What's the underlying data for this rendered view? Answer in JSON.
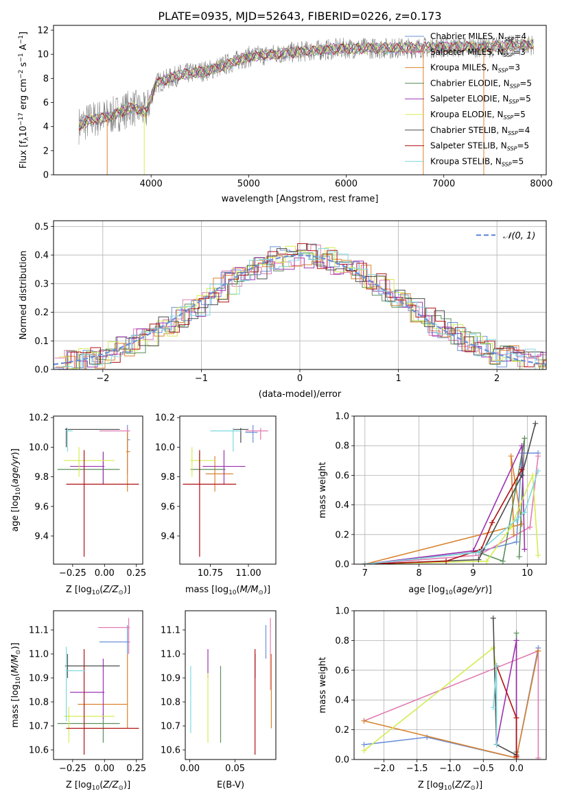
{
  "figure_title": "PLATE=0935, MJD=52643, FIBERID=0226, z=0.173",
  "colors": {
    "chab_miles": "#6a8fd8",
    "salp_miles": "#e27ab0",
    "krou_miles": "#d8822c",
    "chab_elodie": "#5a8e5a",
    "salp_elodie": "#9b30b0",
    "krou_elodie": "#d4ec50",
    "chab_stelib": "#4a4a4a",
    "salp_stelib": "#b01010",
    "krou_stelib": "#7fd8e0",
    "data": "#808080",
    "gauss": "#6a8fd8"
  },
  "chart_data": [
    {
      "id": "spectrum",
      "type": "line",
      "title": "PLATE=0935, MJD=52643, FIBERID=0226, z=0.173",
      "xlabel": "wavelength [Angstrom, rest frame]",
      "ylabel": "Flux [f_λ 10^-17 erg cm^-2 s^-1 A^-1]",
      "xlim": [
        3000,
        8050
      ],
      "ylim": [
        0,
        12.4
      ],
      "xticks": [
        4000,
        5000,
        6000,
        7000,
        8000
      ],
      "yticks": [
        0,
        2,
        4,
        6,
        8,
        10,
        12
      ],
      "grid": false,
      "legend": "upper-right",
      "legend_entries": [
        {
          "label": "Chabrier MILES, N",
          "sub": "SSP",
          "suffix": "=4",
          "color": "#6a8fd8"
        },
        {
          "label": "Salpeter MILES, N",
          "sub": "SSP",
          "suffix": "=3",
          "color": "#e27ab0"
        },
        {
          "label": "Kroupa MILES, N",
          "sub": "SSP",
          "suffix": "=3",
          "color": "#d8822c"
        },
        {
          "label": "Chabrier ELODIE, N",
          "sub": "SSP",
          "suffix": "=5",
          "color": "#5a8e5a"
        },
        {
          "label": "Salpeter ELODIE, N",
          "sub": "SSP",
          "suffix": "=5",
          "color": "#9b30b0"
        },
        {
          "label": "Kroupa ELODIE, N",
          "sub": "SSP",
          "suffix": "=5",
          "color": "#d4ec50"
        },
        {
          "label": "Chabrier STELIB, N",
          "sub": "SSP",
          "suffix": "=4",
          "color": "#4a4a4a"
        },
        {
          "label": "Salpeter STELIB, N",
          "sub": "SSP",
          "suffix": "=5",
          "color": "#b01010"
        },
        {
          "label": "Kroupa STELIB, N",
          "sub": "SSP",
          "suffix": "=5",
          "color": "#7fd8e0"
        }
      ],
      "continuum": [
        [
          3260,
          4.1
        ],
        [
          3400,
          4.6
        ],
        [
          3600,
          4.9
        ],
        [
          3800,
          5.6
        ],
        [
          3950,
          5.2
        ],
        [
          4050,
          7.6
        ],
        [
          4300,
          8.3
        ],
        [
          4600,
          8.7
        ],
        [
          5000,
          9.8
        ],
        [
          5500,
          10.2
        ],
        [
          6000,
          10.5
        ],
        [
          6500,
          10.5
        ],
        [
          7000,
          10.6
        ],
        [
          7500,
          10.6
        ],
        [
          7900,
          10.8
        ]
      ],
      "spike_features": [
        [
          3550,
          0.0
        ],
        [
          3930,
          0.0
        ],
        [
          6790,
          0.0
        ],
        [
          7410,
          0.0
        ]
      ]
    },
    {
      "id": "residuals",
      "type": "histogram",
      "xlabel": "(data-model)/error",
      "ylabel": "Normed distribution",
      "xlim": [
        -2.5,
        2.5
      ],
      "ylim": [
        0,
        0.52
      ],
      "xticks": [
        -2,
        -1,
        0,
        1,
        2
      ],
      "yticks": [
        0.0,
        0.1,
        0.2,
        0.3,
        0.4,
        0.5
      ],
      "grid": true,
      "legend": "upper-right",
      "legend_label": "N(0,1)",
      "bin_width": 0.1,
      "n_series": 9
    },
    {
      "id": "age_vs_Z",
      "type": "errorbar",
      "xlabel": "Z [log10(Z/Z_sun)]",
      "ylabel": "age  [log10(age/yr)]",
      "xlim": [
        -0.4,
        0.3
      ],
      "ylim": [
        9.21,
        10.21
      ],
      "xticks": [
        -0.25,
        0.0,
        0.25
      ],
      "yticks": [
        9.4,
        9.6,
        9.8,
        10.0,
        10.2
      ],
      "points": [
        {
          "s": "chab_miles",
          "x": 0.18,
          "y": 10.05,
          "xe": [
            0.18,
            0.2
          ],
          "ye": [
            9.98,
            10.15
          ]
        },
        {
          "s": "salp_miles",
          "x": 0.18,
          "y": 10.11,
          "xe": [
            -0.04,
            0.2
          ],
          "ye": [
            9.82,
            10.13
          ]
        },
        {
          "s": "krou_miles",
          "x": 0.18,
          "y": 9.97,
          "xe": [
            0.17,
            0.2
          ],
          "ye": [
            9.7,
            10.1
          ]
        },
        {
          "s": "chab_elodie",
          "x": -0.01,
          "y": 9.85,
          "xe": [
            -0.37,
            0.12
          ],
          "ye": [
            9.75,
            9.96
          ]
        },
        {
          "s": "salp_elodie",
          "x": -0.01,
          "y": 9.87,
          "xe": [
            -0.27,
            0.0
          ],
          "ye": [
            9.75,
            9.97
          ]
        },
        {
          "s": "krou_elodie",
          "x": -0.2,
          "y": 9.91,
          "xe": [
            -0.32,
            0.08
          ],
          "ye": [
            9.8,
            10.0
          ]
        },
        {
          "s": "chab_stelib",
          "x": -0.3,
          "y": 10.12,
          "xe": [
            -0.31,
            0.12
          ],
          "ye": [
            10.0,
            10.13
          ]
        },
        {
          "s": "salp_stelib",
          "x": -0.16,
          "y": 9.75,
          "xe": [
            -0.3,
            0.27
          ],
          "ye": [
            9.26,
            9.98
          ]
        },
        {
          "s": "krou_stelib",
          "x": -0.29,
          "y": 10.11,
          "xe": [
            -0.3,
            -0.25
          ],
          "ye": [
            9.97,
            10.13
          ]
        }
      ]
    },
    {
      "id": "age_vs_mass",
      "type": "errorbar",
      "xlabel": "mass [log10(M/M_sun)]",
      "xlim": [
        10.55,
        11.18
      ],
      "ylim": [
        9.21,
        10.21
      ],
      "xticks": [
        10.75,
        11.0
      ],
      "yticks": [
        9.4,
        9.6,
        9.8,
        10.0,
        10.2
      ],
      "points": [
        {
          "s": "chab_miles",
          "x": 11.03,
          "y": 10.1,
          "xe": [
            10.98,
            11.06
          ],
          "ye": [
            10.03,
            10.15
          ]
        },
        {
          "s": "salp_miles",
          "x": 11.08,
          "y": 10.11,
          "xe": [
            10.98,
            11.13
          ],
          "ye": [
            10.05,
            10.13
          ]
        },
        {
          "s": "krou_miles",
          "x": 10.78,
          "y": 9.82,
          "xe": [
            10.72,
            10.9
          ],
          "ye": [
            9.7,
            9.94
          ]
        },
        {
          "s": "chab_elodie",
          "x": 10.68,
          "y": 9.85,
          "xe": [
            10.62,
            10.85
          ],
          "ye": [
            9.75,
            9.96
          ]
        },
        {
          "s": "salp_elodie",
          "x": 10.84,
          "y": 9.87,
          "xe": [
            10.7,
            10.98
          ],
          "ye": [
            9.75,
            9.98
          ]
        },
        {
          "s": "krou_elodie",
          "x": 10.63,
          "y": 9.91,
          "xe": [
            10.62,
            10.78
          ],
          "ye": [
            9.8,
            10.0
          ]
        },
        {
          "s": "chab_stelib",
          "x": 10.95,
          "y": 10.12,
          "xe": [
            10.9,
            11.0
          ],
          "ye": [
            10.03,
            10.13
          ]
        },
        {
          "s": "salp_stelib",
          "x": 10.68,
          "y": 9.75,
          "xe": [
            10.57,
            10.92
          ],
          "ye": [
            9.26,
            9.98
          ]
        },
        {
          "s": "krou_stelib",
          "x": 10.9,
          "y": 10.11,
          "xe": [
            10.75,
            10.95
          ],
          "ye": [
            9.97,
            10.13
          ]
        }
      ]
    },
    {
      "id": "weight_vs_age",
      "type": "line",
      "xlabel": "age  [log10(age/yr)]",
      "ylabel": "mass weight",
      "xlim": [
        6.8,
        10.35
      ],
      "ylim": [
        0,
        1.0
      ],
      "xticks": [
        7,
        8,
        9,
        10
      ],
      "yticks": [
        0.0,
        0.2,
        0.4,
        0.6,
        0.8,
        1.0
      ],
      "grid": true,
      "series": [
        {
          "s": "chab_miles",
          "x": [
            7.0,
            9.05,
            9.8,
            9.9,
            10.2
          ],
          "y": [
            0.0,
            0.08,
            0.15,
            0.75,
            0.75
          ]
        },
        {
          "s": "salp_miles",
          "x": [
            7.0,
            9.1,
            10.05,
            10.2
          ],
          "y": [
            0.0,
            0.06,
            0.25,
            0.73
          ]
        },
        {
          "s": "krou_miles",
          "x": [
            7.0,
            9.9,
            9.7,
            9.75
          ],
          "y": [
            0.0,
            0.27,
            0.73,
            0.2
          ]
        },
        {
          "s": "chab_elodie",
          "x": [
            7.0,
            9.1,
            9.55,
            9.95,
            9.85
          ],
          "y": [
            0.0,
            0.08,
            0.02,
            0.85,
            0.05
          ]
        },
        {
          "s": "salp_elodie",
          "x": [
            7.0,
            9.0,
            9.9,
            9.95
          ],
          "y": [
            0.0,
            0.09,
            0.8,
            0.1
          ]
        },
        {
          "s": "krou_elodie",
          "x": [
            7.0,
            9.25,
            9.7,
            10.1,
            10.2
          ],
          "y": [
            0.0,
            0.02,
            0.25,
            0.6,
            0.06
          ]
        },
        {
          "s": "chab_stelib",
          "x": [
            7.0,
            9.1,
            9.9,
            10.15
          ],
          "y": [
            0.0,
            0.03,
            0.6,
            0.95
          ]
        },
        {
          "s": "salp_stelib",
          "x": [
            7.0,
            8.5,
            9.15,
            9.35,
            9.9
          ],
          "y": [
            0.0,
            0.02,
            0.1,
            0.28,
            0.64
          ]
        },
        {
          "s": "krou_stelib",
          "x": [
            7.0,
            9.1,
            9.8,
            9.95,
            10.2
          ],
          "y": [
            0.0,
            0.08,
            0.3,
            0.35,
            0.63
          ]
        }
      ]
    },
    {
      "id": "mass_vs_Z",
      "type": "errorbar",
      "xlabel": "Z [log10(Z/Z_sun)]",
      "ylabel": "mass [log10(M/M_sun)]",
      "xlim": [
        -0.4,
        0.3
      ],
      "ylim": [
        10.56,
        11.18
      ],
      "xticks": [
        -0.25,
        0.0,
        0.25
      ],
      "yticks": [
        10.6,
        10.7,
        10.8,
        10.9,
        11.0,
        11.1
      ],
      "points": [
        {
          "s": "chab_miles",
          "x": 0.18,
          "y": 11.05,
          "xe": [
            -0.04,
            0.2
          ],
          "ye": [
            11.0,
            11.12
          ]
        },
        {
          "s": "salp_miles",
          "x": 0.19,
          "y": 11.11,
          "xe": [
            -0.05,
            0.2
          ],
          "ye": [
            11.0,
            11.15
          ]
        },
        {
          "s": "krou_miles",
          "x": 0.18,
          "y": 10.79,
          "xe": [
            -0.21,
            0.18
          ],
          "ye": [
            10.69,
            11.0
          ]
        },
        {
          "s": "chab_elodie",
          "x": -0.01,
          "y": 10.71,
          "xe": [
            -0.37,
            0.12
          ],
          "ye": [
            10.63,
            10.75
          ]
        },
        {
          "s": "salp_elodie",
          "x": -0.01,
          "y": 10.84,
          "xe": [
            -0.27,
            0.0
          ],
          "ye": [
            10.73,
            10.98
          ]
        },
        {
          "s": "krou_elodie",
          "x": -0.28,
          "y": 10.74,
          "xe": [
            -0.32,
            0.08
          ],
          "ye": [
            10.63,
            10.78
          ]
        },
        {
          "s": "chab_stelib",
          "x": -0.29,
          "y": 10.95,
          "xe": [
            -0.31,
            0.12
          ],
          "ye": [
            10.9,
            11.0
          ]
        },
        {
          "s": "salp_stelib",
          "x": -0.16,
          "y": 10.69,
          "xe": [
            -0.3,
            0.27
          ],
          "ye": [
            10.58,
            11.02
          ]
        },
        {
          "s": "krou_stelib",
          "x": -0.3,
          "y": 10.93,
          "xe": [
            -0.3,
            -0.15
          ],
          "ye": [
            10.72,
            11.03
          ]
        }
      ]
    },
    {
      "id": "mass_vs_EBV",
      "type": "errorbar",
      "xlabel": "E(B-V)",
      "xlim": [
        -0.005,
        0.095
      ],
      "ylim": [
        10.56,
        11.18
      ],
      "xticks": [
        0.0,
        0.05
      ],
      "yticks": [
        10.6,
        10.7,
        10.8,
        10.9,
        11.0,
        11.1
      ],
      "points": [
        {
          "s": "chab_miles",
          "x": 0.084,
          "y": 11.05,
          "xe": [
            0.084,
            0.084
          ],
          "ye": [
            10.98,
            11.12
          ]
        },
        {
          "s": "salp_miles",
          "x": 0.089,
          "y": 11.11,
          "xe": [
            0.089,
            0.089
          ],
          "ye": [
            10.85,
            11.15
          ]
        },
        {
          "s": "krou_miles",
          "x": 0.09,
          "y": 10.79,
          "xe": [
            0.09,
            0.09
          ],
          "ye": [
            10.69,
            11.0
          ]
        },
        {
          "s": "chab_elodie",
          "x": 0.034,
          "y": 10.76,
          "xe": [
            0.034,
            0.034
          ],
          "ye": [
            10.63,
            10.95
          ]
        },
        {
          "s": "salp_elodie",
          "x": 0.02,
          "y": 10.96,
          "xe": [
            0.02,
            0.02
          ],
          "ye": [
            10.9,
            11.02
          ]
        },
        {
          "s": "krou_elodie",
          "x": 0.02,
          "y": 10.72,
          "xe": [
            0.02,
            0.02
          ],
          "ye": [
            10.63,
            10.92
          ]
        },
        {
          "s": "chab_stelib",
          "x": 0.072,
          "y": 10.95,
          "xe": [
            0.072,
            0.072
          ],
          "ye": [
            10.9,
            11.0
          ]
        },
        {
          "s": "salp_stelib",
          "x": 0.072,
          "y": 10.69,
          "xe": [
            0.072,
            0.072
          ],
          "ye": [
            10.58,
            11.02
          ]
        },
        {
          "s": "krou_stelib",
          "x": 0.001,
          "y": 10.85,
          "xe": [
            0.001,
            0.001
          ],
          "ye": [
            10.67,
            10.95
          ]
        }
      ]
    },
    {
      "id": "weight_vs_Z",
      "type": "line",
      "xlabel": "Z [log10(Z/Z_sun)]",
      "ylabel": "mass weight",
      "xlim": [
        -2.45,
        0.45
      ],
      "ylim": [
        0,
        1.0
      ],
      "xticks": [
        -2.0,
        -1.5,
        -1.0,
        -0.5,
        0.0
      ],
      "yticks": [
        0.0,
        0.2,
        0.4,
        0.6,
        0.8,
        1.0
      ],
      "grid": true,
      "series": [
        {
          "s": "chab_miles",
          "x": [
            -2.3,
            -1.35,
            0.0,
            0.33
          ],
          "y": [
            0.1,
            0.15,
            0.01,
            0.75
          ]
        },
        {
          "s": "salp_miles",
          "x": [
            -2.3,
            0.33,
            0.33
          ],
          "y": [
            0.26,
            0.73,
            0.01
          ]
        },
        {
          "s": "krou_miles",
          "x": [
            0.33,
            0.0,
            -2.3
          ],
          "y": [
            0.73,
            0.01,
            0.26
          ]
        },
        {
          "s": "chab_elodie",
          "x": [
            0.0,
            0.0
          ],
          "y": [
            0.85,
            0.05
          ]
        },
        {
          "s": "salp_elodie",
          "x": [
            -0.3,
            0.0,
            0.0
          ],
          "y": [
            0.1,
            0.8,
            0.02
          ]
        },
        {
          "s": "krou_elodie",
          "x": [
            -2.3,
            -0.35,
            -0.3
          ],
          "y": [
            0.06,
            0.75,
            0.6
          ]
        },
        {
          "s": "chab_stelib",
          "x": [
            -0.35,
            -0.3,
            0.0
          ],
          "y": [
            0.95,
            0.1,
            0.03
          ]
        },
        {
          "s": "salp_stelib",
          "x": [
            -0.3,
            0.0,
            0.0
          ],
          "y": [
            0.63,
            0.28,
            0.02
          ]
        },
        {
          "s": "krou_stelib",
          "x": [
            -0.35,
            -0.3,
            -0.3
          ],
          "y": [
            0.35,
            0.63,
            0.1
          ]
        }
      ]
    }
  ]
}
